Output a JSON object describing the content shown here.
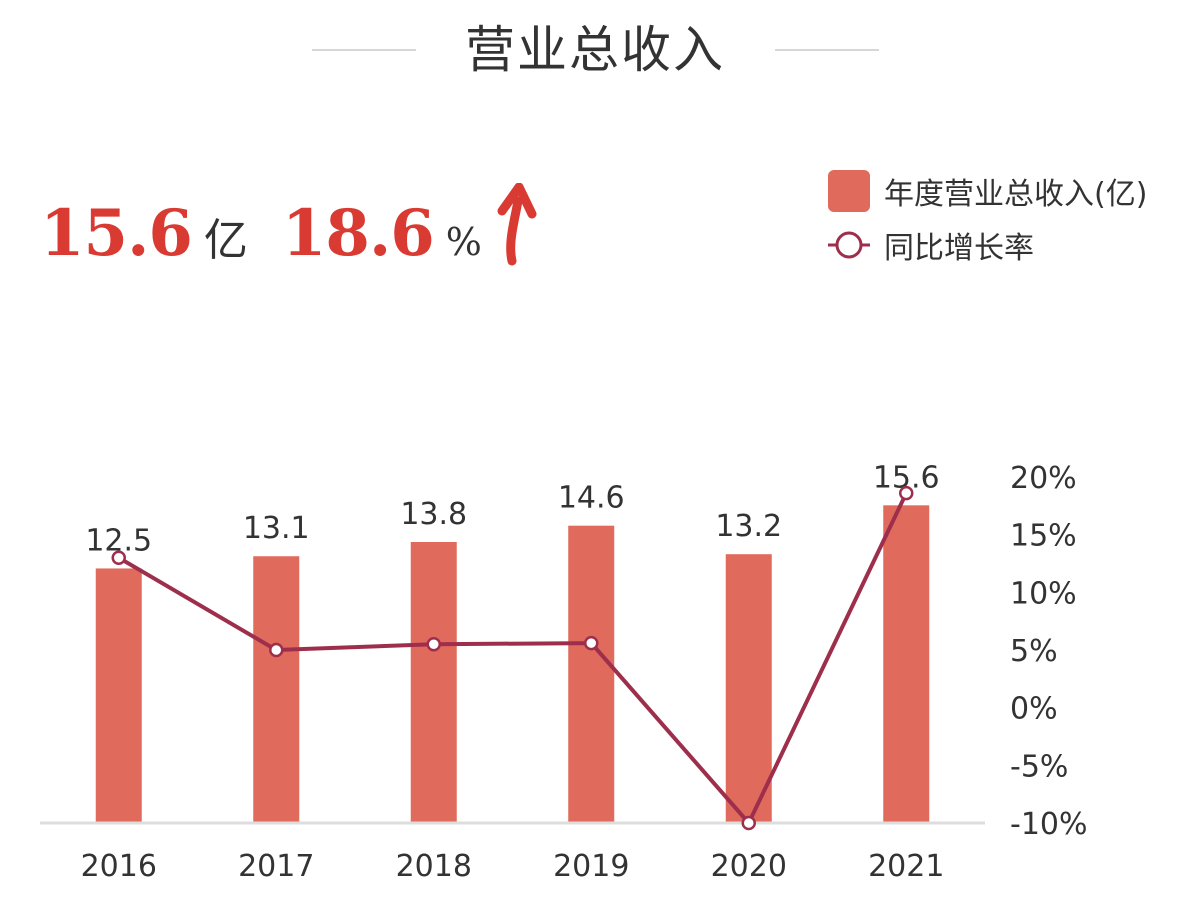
{
  "title": "营业总收入",
  "summary": {
    "revenue_value": "15.6",
    "revenue_unit": "亿",
    "growth_value": "18.6",
    "growth_unit": "%",
    "trend_icon": "arrow-up-icon"
  },
  "colors": {
    "bar": "#e06a5c",
    "line": "#9e2f4c",
    "accent": "#d93a31",
    "text": "#333333",
    "axis": "#dddddd"
  },
  "chart_data": {
    "type": "bar",
    "categories": [
      "2016",
      "2017",
      "2018",
      "2019",
      "2020",
      "2021"
    ],
    "series": [
      {
        "name": "年度营业总收入(亿)",
        "type": "bar",
        "axis": "left",
        "values": [
          12.5,
          13.1,
          13.8,
          14.6,
          13.2,
          15.6
        ],
        "labels": [
          "12.5",
          "13.1",
          "13.8",
          "14.6",
          "13.2",
          "15.6"
        ]
      },
      {
        "name": "同比增长率",
        "type": "line",
        "axis": "right",
        "values": [
          13,
          5,
          5.5,
          5.6,
          -10,
          18.6
        ]
      }
    ],
    "y_left": {
      "min": 0,
      "max": 16.5
    },
    "y_right": {
      "min": -10,
      "max": 20,
      "ticks": [
        20,
        15,
        10,
        5,
        0,
        -5,
        -10
      ],
      "tick_labels": [
        "20%",
        "15%",
        "10%",
        "5%",
        "0%",
        "-5%",
        "-10%"
      ]
    },
    "grid": false,
    "legend": "top-right"
  }
}
